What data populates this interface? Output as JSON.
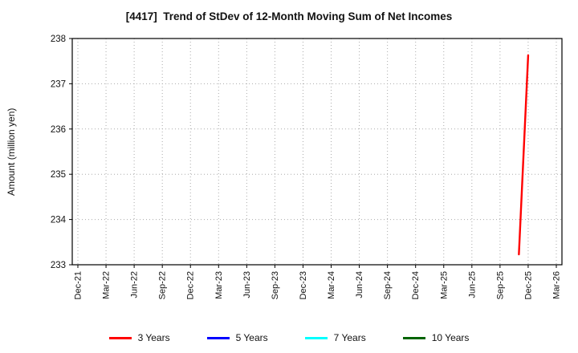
{
  "chart_data": {
    "type": "line",
    "title": "[4417]  Trend of StDev of 12-Month Moving Sum of Net Incomes",
    "ylabel": "Amount (million yen)",
    "ylim": [
      233,
      238
    ],
    "yticks": [
      233,
      234,
      235,
      236,
      237,
      238
    ],
    "x_categories": [
      "Dec-21",
      "Mar-22",
      "Jun-22",
      "Sep-22",
      "Dec-22",
      "Mar-23",
      "Jun-23",
      "Sep-23",
      "Dec-23",
      "Mar-24",
      "Jun-24",
      "Sep-24",
      "Dec-24",
      "Mar-25",
      "Jun-25",
      "Sep-25",
      "Dec-25",
      "Mar-26"
    ],
    "grid": true,
    "legend_position": "bottom",
    "series": [
      {
        "name": "3 Years",
        "color": "#ff0000",
        "points": [
          {
            "label": "Nov-25",
            "x": 15.67,
            "y": 233.23
          },
          {
            "label": "Dec-25",
            "x": 16.0,
            "y": 237.63
          }
        ]
      },
      {
        "name": "5 Years",
        "color": "#0000ff",
        "points": []
      },
      {
        "name": "7 Years",
        "color": "#00ffff",
        "points": []
      },
      {
        "name": "10 Years",
        "color": "#006400",
        "points": []
      }
    ]
  }
}
